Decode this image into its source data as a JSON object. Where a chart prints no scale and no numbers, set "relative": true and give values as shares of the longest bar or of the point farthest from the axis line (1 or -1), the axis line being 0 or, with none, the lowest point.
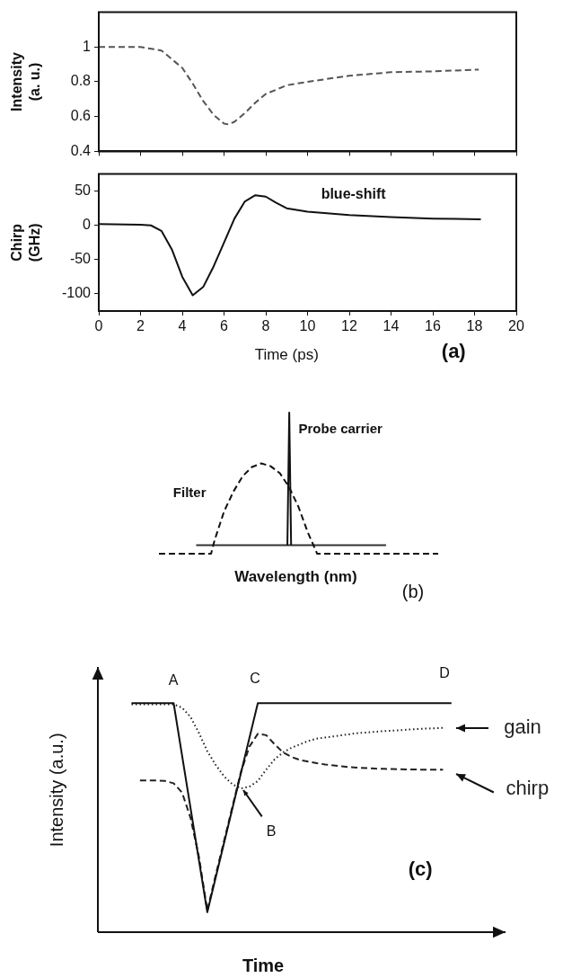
{
  "chart_data": [
    {
      "type": "line",
      "ylabel": "Intensity (a. u.)",
      "x": [
        0,
        2,
        3,
        4,
        4.5,
        5,
        5.5,
        6,
        6.2,
        6.5,
        7,
        7.5,
        8,
        9,
        10,
        12,
        14,
        16,
        18.2
      ],
      "series": [
        {
          "color": "#555555",
          "line_style": "dashed",
          "values": [
            1,
            1,
            0.98,
            0.88,
            0.79,
            0.69,
            0.61,
            0.56,
            0.555,
            0.57,
            0.62,
            0.68,
            0.73,
            0.78,
            0.8,
            0.835,
            0.855,
            0.86,
            0.87
          ]
        }
      ],
      "xlim": [
        0,
        20
      ],
      "xticks": [
        0,
        2,
        4,
        6,
        8,
        10,
        12,
        14,
        16,
        18,
        20
      ],
      "ylim": [
        0.4,
        1.2
      ],
      "yticks": [
        0.4,
        0.6,
        0.8,
        1
      ],
      "tick_labels": "y",
      "legend": false,
      "grid": false,
      "marker": "none"
    },
    {
      "type": "line",
      "ylabel": "Chirp (GHz)",
      "xlabel": "Time (ps)",
      "x": [
        0,
        2,
        2.5,
        3,
        3.5,
        4,
        4.5,
        5,
        5.5,
        6,
        6.5,
        7,
        7.5,
        8,
        8.5,
        9,
        10,
        12,
        14,
        16,
        18.3
      ],
      "series": [
        {
          "color": "#111111",
          "line_style": "solid",
          "values": [
            2,
            1,
            0,
            -8,
            -35,
            -75,
            -102,
            -90,
            -60,
            -25,
            10,
            35,
            44,
            42,
            33,
            25,
            20,
            15,
            12,
            10,
            9
          ]
        }
      ],
      "xlim": [
        0,
        20
      ],
      "xticks": [
        0,
        2,
        4,
        6,
        8,
        10,
        12,
        14,
        16,
        18,
        20
      ],
      "ylim": [
        -125,
        75
      ],
      "yticks": [
        -100,
        -50,
        0,
        50
      ],
      "annotations": [
        "blue-shift",
        "(a)"
      ],
      "legend": false,
      "grid": false,
      "marker": "none"
    },
    {
      "type": "line",
      "xlabel": "Wavelength (nm)",
      "relative": true,
      "categories": [
        null,
        null,
        null,
        null,
        null,
        null,
        null,
        null,
        null,
        null,
        null,
        null,
        null,
        null,
        null,
        null,
        null,
        null,
        null,
        null,
        null,
        null,
        null,
        null,
        null,
        null,
        null,
        null,
        null,
        null,
        null,
        null,
        null,
        null,
        null,
        null,
        null,
        null,
        null,
        null,
        null,
        null,
        null,
        null,
        null,
        null,
        null,
        null,
        null,
        null,
        null,
        null,
        null,
        null,
        null,
        null,
        null,
        null,
        null,
        null,
        null,
        null,
        null,
        null,
        null,
        null,
        null,
        null,
        null,
        null,
        null,
        null,
        null,
        null,
        null,
        null,
        null,
        null,
        null,
        null,
        null,
        null,
        null,
        null,
        null,
        null,
        null,
        null,
        null,
        null,
        null,
        null,
        null,
        null,
        null,
        null,
        null,
        null,
        null,
        null,
        null,
        null,
        null,
        null,
        null,
        null,
        null,
        null,
        null,
        null,
        null,
        null,
        null,
        null,
        null,
        null,
        null,
        null,
        null,
        null,
        null,
        null,
        null,
        null,
        null,
        null,
        null,
        null,
        null,
        null,
        null,
        null,
        null,
        null,
        null,
        null,
        null,
        null,
        null,
        null,
        null,
        null,
        null,
        null,
        null,
        null,
        null,
        null,
        null,
        null,
        null
      ],
      "series": [
        {
          "name": "Filter",
          "color": "#111111",
          "line_style": "dashed",
          "values": [
            0,
            null,
            null,
            null,
            null,
            null,
            null,
            null,
            null,
            null,
            null,
            null,
            null,
            null,
            null,
            null,
            null,
            null,
            null,
            null,
            null,
            null,
            null,
            null,
            null,
            null,
            null,
            null,
            0,
            null,
            0.1,
            null,
            null,
            null,
            null,
            0.3,
            null,
            null,
            null,
            null,
            0.44,
            null,
            null,
            null,
            null,
            0.55,
            null,
            null,
            null,
            null,
            0.615,
            null,
            null,
            null,
            null,
            0.64,
            null,
            null,
            null,
            null,
            0.62,
            null,
            null,
            null,
            null,
            0.57,
            null,
            null,
            null,
            null,
            0.47,
            null,
            null,
            null,
            null,
            0.33,
            null,
            null,
            null,
            null,
            0.15,
            null,
            null,
            null,
            null,
            0,
            null,
            null,
            null,
            null,
            null,
            null,
            null,
            null,
            null,
            null,
            null,
            null,
            null,
            null,
            null,
            null,
            null,
            null,
            null,
            null,
            null,
            null,
            null,
            null,
            null,
            null,
            null,
            null,
            null,
            null,
            null,
            null,
            null,
            null,
            null,
            null,
            null,
            null,
            null,
            null,
            null,
            null,
            null,
            null,
            null,
            null,
            null,
            null,
            null,
            null,
            null,
            null,
            null,
            null,
            null,
            null,
            null,
            null,
            null,
            null,
            null,
            null,
            null,
            null,
            0
          ]
        },
        {
          "name": "Probe carrier",
          "color": "#111111",
          "line_style": "solid",
          "values": [
            null,
            null,
            null,
            null,
            null,
            null,
            null,
            null,
            null,
            null,
            null,
            null,
            null,
            null,
            null,
            null,
            null,
            null,
            null,
            null,
            null,
            null,
            null,
            null,
            null,
            null,
            null,
            null,
            null,
            null,
            null,
            null,
            null,
            null,
            null,
            null,
            null,
            null,
            null,
            null,
            null,
            null,
            null,
            null,
            null,
            null,
            null,
            null,
            null,
            null,
            null,
            null,
            null,
            null,
            null,
            null,
            null,
            null,
            null,
            null,
            null,
            null,
            null,
            null,
            null,
            null,
            null,
            null,
            null,
            0.06,
            1,
            0.06,
            null,
            null,
            null,
            null,
            null,
            null,
            null,
            null,
            null,
            null,
            null,
            null,
            null,
            null,
            null,
            null,
            null,
            null,
            null,
            null,
            null,
            null,
            null,
            null,
            null,
            null,
            null,
            null,
            null,
            null,
            null,
            null,
            null,
            null,
            null,
            null,
            null,
            null,
            null,
            null,
            null,
            null,
            null,
            null,
            null,
            null,
            null,
            null,
            null,
            null,
            null,
            null,
            null,
            null,
            null,
            null,
            null,
            null,
            null,
            null,
            null,
            null,
            null,
            null,
            null,
            null,
            null,
            null,
            null,
            null,
            null,
            null,
            null,
            null,
            null,
            null,
            null,
            null,
            null
          ]
        },
        {
          "color": "#333333",
          "line_style": "solid",
          "values": [
            null,
            null,
            null,
            null,
            null,
            null,
            null,
            null,
            null,
            null,
            null,
            null,
            null,
            null,
            null,
            null,
            null,
            null,
            null,
            null,
            0.06,
            null,
            null,
            null,
            null,
            null,
            null,
            null,
            null,
            null,
            null,
            null,
            null,
            null,
            null,
            null,
            null,
            null,
            null,
            null,
            null,
            null,
            null,
            null,
            null,
            null,
            null,
            null,
            null,
            null,
            null,
            null,
            null,
            null,
            null,
            null,
            null,
            null,
            null,
            null,
            null,
            null,
            null,
            null,
            null,
            null,
            null,
            null,
            null,
            null,
            null,
            null,
            null,
            null,
            null,
            null,
            null,
            null,
            null,
            null,
            null,
            null,
            null,
            null,
            null,
            null,
            null,
            null,
            null,
            null,
            null,
            null,
            null,
            null,
            null,
            null,
            null,
            null,
            null,
            null,
            null,
            null,
            null,
            null,
            null,
            null,
            null,
            null,
            null,
            null,
            null,
            null,
            null,
            null,
            null,
            null,
            null,
            null,
            null,
            null,
            null,
            null,
            0.06,
            null,
            null,
            null,
            null,
            null,
            null,
            null,
            null,
            null,
            null,
            null,
            null,
            null,
            null,
            null,
            null,
            null,
            null,
            null,
            null,
            null,
            null,
            null,
            null,
            null,
            null,
            null,
            null
          ]
        }
      ],
      "annotations": [
        "(b)"
      ],
      "tick_labels": false,
      "legend": false,
      "grid": false,
      "marker": "none"
    },
    {
      "type": "line",
      "ylabel": "Intensity (a.u.)",
      "xlabel": "Time",
      "relative": true,
      "categories": [
        null,
        null,
        null,
        null,
        null,
        null,
        null,
        null,
        null,
        null,
        null,
        null,
        null,
        null,
        null,
        null,
        null,
        null,
        null,
        null,
        null,
        null,
        null,
        null,
        null,
        null,
        null,
        null,
        null,
        null,
        null,
        null,
        null,
        null,
        null,
        null,
        null,
        null,
        null,
        null,
        null,
        null,
        null,
        null,
        null,
        null,
        null,
        null,
        null
      ],
      "series": [
        {
          "color": "#111111",
          "line_style": "solid",
          "values": [
            null,
            null,
            null,
            null,
            1,
            null,
            null,
            null,
            null,
            1,
            null,
            null,
            null,
            0.087,
            null,
            null,
            null,
            null,
            null,
            1,
            null,
            null,
            null,
            null,
            null,
            null,
            null,
            null,
            null,
            null,
            null,
            null,
            null,
            null,
            null,
            null,
            null,
            null,
            null,
            null,
            null,
            null,
            1,
            null,
            null,
            null,
            null,
            null,
            null
          ]
        },
        {
          "name": "gain",
          "color": "#222222",
          "line_style": "dotted",
          "values": [
            null,
            null,
            null,
            null,
            0.995,
            0.995,
            0.995,
            0.995,
            0.995,
            0.995,
            0.98,
            0.94,
            0.87,
            0.79,
            0.73,
            0.68,
            0.645,
            0.628,
            0.635,
            0.66,
            0.71,
            0.755,
            0.785,
            0.805,
            0.82,
            0.835,
            0.845,
            0.85,
            0.855,
            0.86,
            0.865,
            0.87,
            0.872,
            0.875,
            0.878,
            0.88,
            0.882,
            0.885,
            0.887,
            0.889,
            0.89,
            0.892,
            null,
            null,
            null,
            null,
            null,
            null,
            null
          ]
        },
        {
          "name": "chirp",
          "color": "#222222",
          "line_style": "dashed",
          "values": [
            null,
            null,
            null,
            null,
            null,
            0.662,
            0.662,
            0.662,
            0.66,
            0.65,
            0.61,
            0.5,
            0.33,
            0.095,
            0.25,
            0.4,
            0.55,
            0.7,
            0.81,
            0.866,
            0.86,
            0.82,
            0.785,
            0.765,
            0.752,
            0.745,
            0.738,
            0.732,
            0.728,
            0.724,
            0.72,
            0.718,
            0.716,
            0.714,
            0.713,
            0.712,
            0.711,
            0.71,
            0.71,
            0.709,
            0.709,
            0.709,
            null,
            null,
            null,
            null,
            null,
            null,
            null
          ]
        }
      ],
      "annotations": [
        "A",
        "B",
        "C",
        "D",
        "(c)"
      ],
      "tick_labels": false,
      "legend": false,
      "grid": false,
      "marker": "none"
    }
  ]
}
